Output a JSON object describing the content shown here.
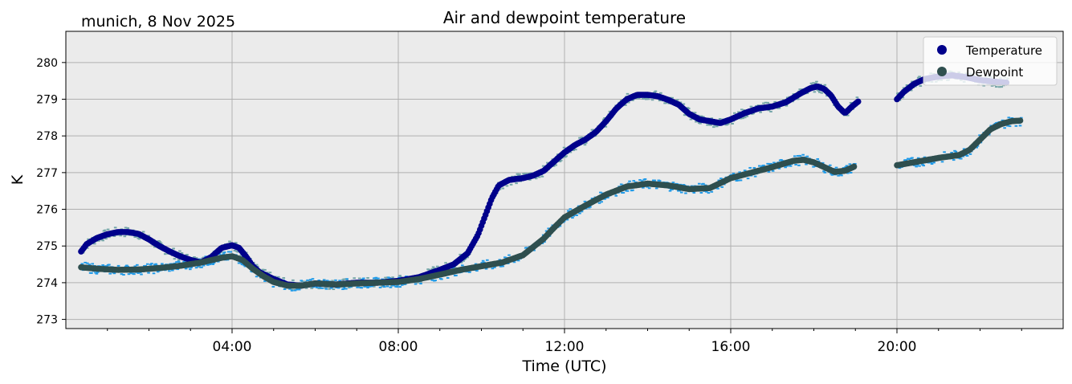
{
  "chart_data": {
    "type": "scatter",
    "title": "Air and dewpoint temperature",
    "corner_text": "munich, 8 Nov 2025",
    "xlabel": "Time (UTC)",
    "ylabel": "K",
    "xlim": [
      "00:00",
      "24:00"
    ],
    "ylim": [
      272.75,
      280.85
    ],
    "x_ticks": [
      "04:00",
      "08:00",
      "12:00",
      "16:00",
      "20:00"
    ],
    "y_ticks": [
      273,
      274,
      275,
      276,
      277,
      278,
      279,
      280
    ],
    "grid": true,
    "legend_position": "top-right",
    "background": "#ebebeb",
    "series": [
      {
        "name": "Temperature",
        "color": "#00008b",
        "raw_color": "#74a5a8",
        "points": [
          [
            "00:22",
            274.85
          ],
          [
            "00:30",
            275.05
          ],
          [
            "00:45",
            275.22
          ],
          [
            "01:00",
            275.32
          ],
          [
            "01:15",
            275.38
          ],
          [
            "01:30",
            275.38
          ],
          [
            "01:45",
            275.33
          ],
          [
            "02:00",
            275.18
          ],
          [
            "02:15",
            275.0
          ],
          [
            "02:30",
            274.85
          ],
          [
            "02:45",
            274.72
          ],
          [
            "03:00",
            274.62
          ],
          [
            "03:15",
            274.55
          ],
          [
            "03:30",
            274.7
          ],
          [
            "03:45",
            274.95
          ],
          [
            "04:00",
            275.02
          ],
          [
            "04:10",
            274.95
          ],
          [
            "04:20",
            274.72
          ],
          [
            "04:30",
            274.45
          ],
          [
            "04:40",
            274.28
          ],
          [
            "05:00",
            274.1
          ],
          [
            "05:20",
            273.95
          ],
          [
            "05:40",
            273.92
          ],
          [
            "06:00",
            273.98
          ],
          [
            "06:30",
            273.95
          ],
          [
            "07:00",
            274.0
          ],
          [
            "07:30",
            274.0
          ],
          [
            "08:00",
            274.05
          ],
          [
            "08:30",
            274.15
          ],
          [
            "09:00",
            274.35
          ],
          [
            "09:20",
            274.5
          ],
          [
            "09:40",
            274.8
          ],
          [
            "09:55",
            275.3
          ],
          [
            "10:05",
            275.8
          ],
          [
            "10:15",
            276.3
          ],
          [
            "10:25",
            276.65
          ],
          [
            "10:40",
            276.8
          ],
          [
            "11:00",
            276.85
          ],
          [
            "11:15",
            276.92
          ],
          [
            "11:30",
            277.05
          ],
          [
            "11:45",
            277.3
          ],
          [
            "12:00",
            277.55
          ],
          [
            "12:15",
            277.75
          ],
          [
            "12:30",
            277.9
          ],
          [
            "12:45",
            278.1
          ],
          [
            "13:00",
            278.4
          ],
          [
            "13:15",
            278.75
          ],
          [
            "13:30",
            279.0
          ],
          [
            "13:45",
            279.12
          ],
          [
            "14:00",
            279.12
          ],
          [
            "14:15",
            279.08
          ],
          [
            "14:30",
            278.98
          ],
          [
            "14:45",
            278.85
          ],
          [
            "15:00",
            278.6
          ],
          [
            "15:15",
            278.45
          ],
          [
            "15:30",
            278.4
          ],
          [
            "15:45",
            278.35
          ],
          [
            "16:00",
            278.45
          ],
          [
            "16:20",
            278.62
          ],
          [
            "16:40",
            278.75
          ],
          [
            "17:00",
            278.8
          ],
          [
            "17:20",
            278.92
          ],
          [
            "17:40",
            279.15
          ],
          [
            "17:55",
            279.3
          ],
          [
            "18:05",
            279.35
          ],
          [
            "18:15",
            279.28
          ],
          [
            "18:25",
            279.1
          ],
          [
            "18:35",
            278.8
          ],
          [
            "18:45",
            278.62
          ],
          [
            "18:55",
            278.8
          ],
          [
            "19:05",
            278.95
          ],
          [
            "20:00",
            279.0
          ],
          [
            "20:10",
            279.2
          ],
          [
            "20:25",
            279.42
          ],
          [
            "20:40",
            279.55
          ],
          [
            "21:00",
            279.62
          ],
          [
            "21:20",
            279.65
          ],
          [
            "21:40",
            279.6
          ],
          [
            "22:00",
            279.52
          ],
          [
            "22:20",
            279.48
          ],
          [
            "22:40",
            279.45
          ]
        ]
      },
      {
        "name": "Dewpoint",
        "color": "#2f4f4f",
        "raw_color": "#1f9ae8",
        "points": [
          [
            "00:22",
            274.42
          ],
          [
            "00:45",
            274.38
          ],
          [
            "01:15",
            274.35
          ],
          [
            "01:45",
            274.36
          ],
          [
            "02:15",
            274.4
          ],
          [
            "02:45",
            274.46
          ],
          [
            "03:15",
            274.55
          ],
          [
            "03:45",
            274.68
          ],
          [
            "04:00",
            274.72
          ],
          [
            "04:15",
            274.62
          ],
          [
            "04:30",
            274.38
          ],
          [
            "04:45",
            274.18
          ],
          [
            "05:00",
            274.02
          ],
          [
            "05:20",
            273.92
          ],
          [
            "05:40",
            273.92
          ],
          [
            "06:00",
            273.98
          ],
          [
            "06:30",
            273.95
          ],
          [
            "07:00",
            273.98
          ],
          [
            "07:30",
            274.0
          ],
          [
            "08:00",
            274.02
          ],
          [
            "08:30",
            274.1
          ],
          [
            "09:00",
            274.22
          ],
          [
            "09:30",
            274.35
          ],
          [
            "10:00",
            274.45
          ],
          [
            "10:30",
            274.55
          ],
          [
            "11:00",
            274.75
          ],
          [
            "11:30",
            275.2
          ],
          [
            "11:45",
            275.5
          ],
          [
            "12:00",
            275.78
          ],
          [
            "12:30",
            276.1
          ],
          [
            "13:00",
            276.4
          ],
          [
            "13:30",
            276.62
          ],
          [
            "14:00",
            276.7
          ],
          [
            "14:30",
            276.65
          ],
          [
            "15:00",
            276.55
          ],
          [
            "15:30",
            276.58
          ],
          [
            "16:00",
            276.85
          ],
          [
            "16:30",
            277.0
          ],
          [
            "17:00",
            277.15
          ],
          [
            "17:30",
            277.32
          ],
          [
            "17:45",
            277.35
          ],
          [
            "18:00",
            277.28
          ],
          [
            "18:15",
            277.15
          ],
          [
            "18:30",
            277.02
          ],
          [
            "18:45",
            277.05
          ],
          [
            "19:00",
            277.18
          ],
          [
            "20:00",
            277.2
          ],
          [
            "20:30",
            277.3
          ],
          [
            "21:00",
            277.4
          ],
          [
            "21:30",
            277.48
          ],
          [
            "21:45",
            277.62
          ],
          [
            "22:00",
            277.9
          ],
          [
            "22:15",
            278.18
          ],
          [
            "22:30",
            278.32
          ],
          [
            "22:45",
            278.4
          ],
          [
            "23:00",
            278.42
          ]
        ]
      }
    ]
  }
}
